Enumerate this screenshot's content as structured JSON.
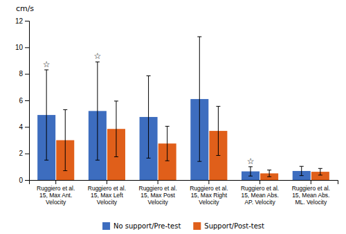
{
  "chart_data": {
    "type": "bar",
    "y_label": "cm/s",
    "categories": [
      "Ruggiero et al.\n15, Max Ant.\nVelocity",
      "Ruggiero et al.\n15, Max Left\nVelocity",
      "Ruggiero et al.\n15, Max Post\nVelocity",
      "Ruggiero et al.\n15, Max Right\nVelocity",
      "Ruggiero et al.\n15, Mean Abs.\nAP. Velocity",
      "Ruggiero et al.\n15, Mean Abs.\nML. Velocity"
    ],
    "series": [
      {
        "name": "No support/Pre-test",
        "color": "#3d6dbf",
        "values": [
          4.9,
          5.2,
          4.75,
          6.1,
          0.65,
          0.68
        ],
        "errors": [
          3.4,
          3.7,
          3.1,
          4.7,
          0.35,
          0.35
        ],
        "annotations": [
          {
            "index": 0,
            "text": "☆"
          },
          {
            "index": 1,
            "text": "☆"
          },
          {
            "index": 4,
            "text": "☆"
          }
        ]
      },
      {
        "name": "Support/Post-test",
        "color": "#e05f1a",
        "values": [
          3.0,
          3.85,
          2.75,
          3.7,
          0.5,
          0.62
        ],
        "errors": [
          2.3,
          2.1,
          1.3,
          1.85,
          0.25,
          0.25
        ]
      }
    ],
    "ylim": [
      0,
      12
    ],
    "yticks": [
      0,
      2,
      4,
      6,
      8,
      10,
      12
    ],
    "grid": false,
    "legend": "bottom"
  }
}
